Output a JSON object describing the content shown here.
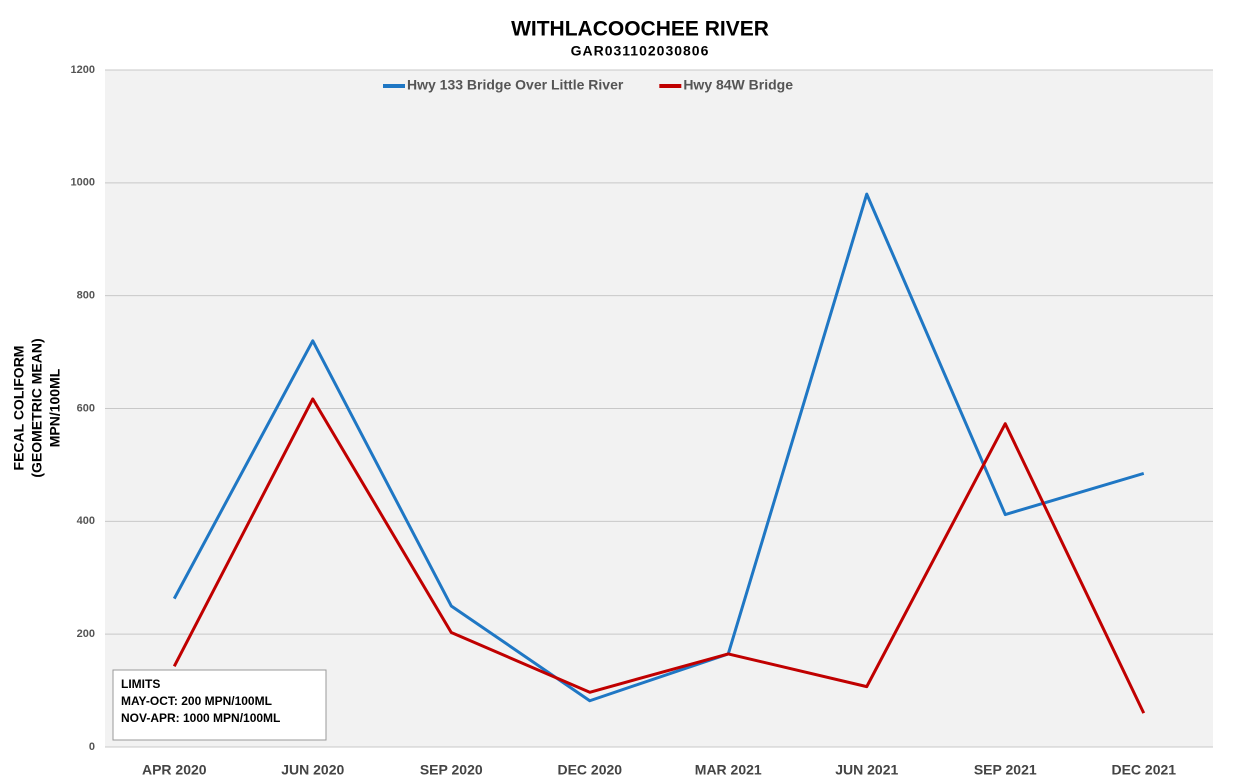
{
  "chart_data": {
    "type": "line",
    "title": "WITHLACOOCHEE RIVER",
    "subtitle": "GAR031102030806",
    "ylabel": [
      "FECAL COLIFORM",
      "(GEOMETRIC MEAN)",
      "MPN/100ML"
    ],
    "categories": [
      "APR 2020",
      "JUN 2020",
      "SEP 2020",
      "DEC 2020",
      "MAR 2021",
      "JUN 2021",
      "SEP 2021",
      "DEC 2021"
    ],
    "series": [
      {
        "name": "Hwy 133 Bridge Over Little River",
        "color": "#1f77c4",
        "values": [
          263,
          720,
          250,
          82,
          165,
          980,
          412,
          485
        ]
      },
      {
        "name": "Hwy 84W Bridge",
        "color": "#c00000",
        "values": [
          143,
          617,
          203,
          97,
          165,
          107,
          573,
          60
        ]
      }
    ],
    "ylim": [
      0,
      1200
    ],
    "yticks": [
      0,
      200,
      400,
      600,
      800,
      1000,
      1200
    ],
    "grid": true,
    "legend": "top",
    "annotations": [
      "LIMITS",
      "MAY-OCT: 200 MPN/100ML",
      "NOV-APR: 1000 MPN/100ML"
    ]
  }
}
